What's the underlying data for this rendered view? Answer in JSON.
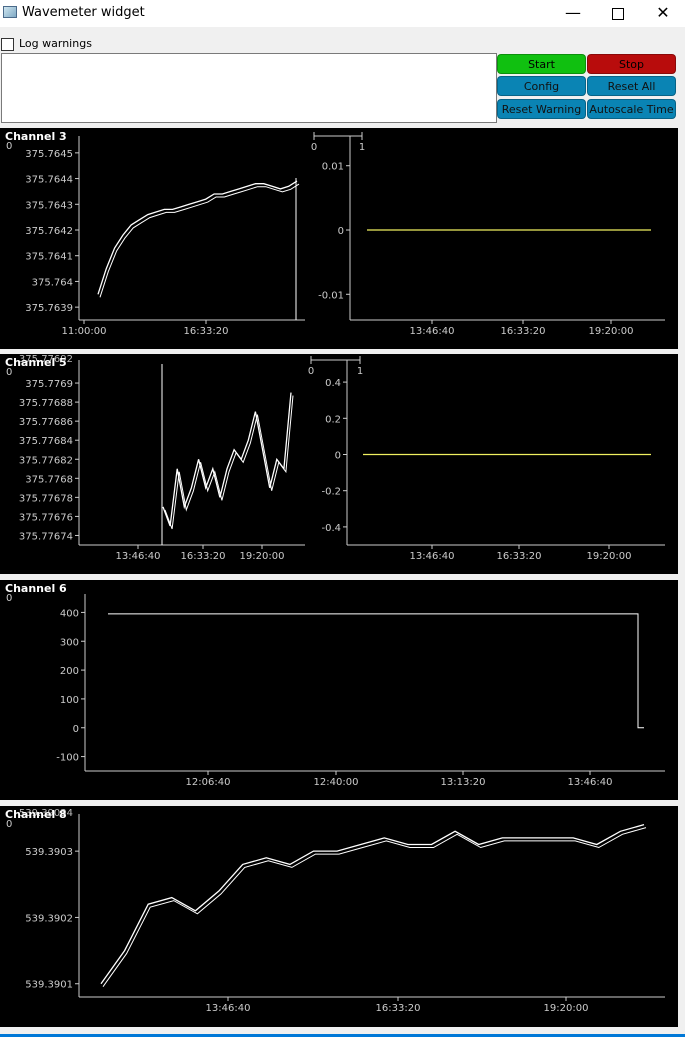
{
  "window": {
    "title": "Wavemeter widget",
    "minimize": "—",
    "close": "✕"
  },
  "log": {
    "checkbox_label": "Log warnings",
    "checked": false
  },
  "buttons": {
    "start": "Start",
    "stop": "Stop",
    "config": "Config",
    "reset_all": "Reset All",
    "reset_warning": "Reset Warning",
    "autoscale_time": "Autoscale Time"
  },
  "colors": {
    "start": "#10c010",
    "stop": "#b80c0c",
    "teal": "#0a84b4",
    "trace": "#ffffff",
    "lock": "#f0f060"
  },
  "channels": [
    {
      "label": "Channel 3"
    },
    {
      "label": "Channel 5"
    },
    {
      "label": "Channel 6"
    },
    {
      "label": "Channel 8"
    }
  ],
  "chart_data": [
    {
      "type": "line",
      "name": "channel-3-frequency",
      "x_ticks": [
        "11:00:00",
        "16:33:20"
      ],
      "y_ticks": [
        "375.7645",
        "375.7644",
        "375.7643",
        "375.7642",
        "375.7641",
        "375.764",
        "375.7639"
      ],
      "mini_axis": [
        "0",
        "1"
      ],
      "corner_label": "0",
      "y_range": [
        375.76385,
        375.76455
      ],
      "series": [
        {
          "values": [
            375.76395,
            375.76405,
            375.76413,
            375.76418,
            375.76422,
            375.76424,
            375.76426,
            375.76427,
            375.76428,
            375.76428,
            375.76429,
            375.7643,
            375.76431,
            375.76432,
            375.76434,
            375.76434,
            375.76435,
            375.76436,
            375.76437,
            375.76438,
            375.76438,
            375.76437,
            375.76436,
            375.76437,
            375.76439
          ]
        }
      ]
    },
    {
      "type": "line",
      "name": "channel-3-error",
      "x_ticks": [
        "13:46:40",
        "16:33:20",
        "19:20:00"
      ],
      "y_ticks": [
        "0.01",
        "0",
        "-0.01"
      ],
      "y_range": [
        -0.014,
        0.014
      ],
      "series": [
        {
          "values": [
            0,
            0
          ]
        }
      ]
    },
    {
      "type": "line",
      "name": "channel-5-frequency",
      "x_ticks": [
        "13:46:40",
        "16:33:20",
        "19:20:00"
      ],
      "y_ticks": [
        "375.7769",
        "375.77688",
        "375.77686",
        "375.77684",
        "375.77682",
        "375.7768",
        "375.77678",
        "375.77676",
        "375.77674"
      ],
      "mini_axis": [
        "0",
        "1"
      ],
      "corner_label": "0",
      "top_partial": "375.77692",
      "y_range": [
        375.77673,
        375.77692
      ],
      "series": [
        {
          "values": [
            375.77677,
            375.77675,
            375.77681,
            375.77677,
            375.77679,
            375.77682,
            375.77679,
            375.77681,
            375.77678,
            375.77681,
            375.77683,
            375.77682,
            375.77684,
            375.77687,
            375.77683,
            375.77679,
            375.77682,
            375.77681,
            375.77689
          ]
        }
      ]
    },
    {
      "type": "line",
      "name": "channel-5-error",
      "x_ticks": [
        "13:46:40",
        "16:33:20",
        "19:20:00"
      ],
      "y_ticks": [
        "0.4",
        "0.2",
        "0",
        "-0.2",
        "-0.4"
      ],
      "y_range": [
        -0.5,
        0.5
      ],
      "series": [
        {
          "values": [
            0,
            0
          ]
        }
      ]
    },
    {
      "type": "line",
      "name": "channel-6",
      "x_ticks": [
        "12:06:40",
        "12:40:00",
        "13:13:20",
        "13:46:40"
      ],
      "y_ticks": [
        "400",
        "300",
        "200",
        "100",
        "0",
        "-100"
      ],
      "corner_label": "0",
      "y_range": [
        -150,
        450
      ],
      "series": [
        {
          "values": [
            395,
            395,
            395,
            395,
            0
          ]
        }
      ]
    },
    {
      "type": "line",
      "name": "channel-8-frequency",
      "x_ticks": [
        "13:46:40",
        "16:33:20",
        "19:20:00"
      ],
      "y_ticks": [
        "539.3903",
        "539.3902",
        "539.3901"
      ],
      "corner_label": "0",
      "top_partial": "539.39034",
      "y_range": [
        539.39008,
        539.39035
      ],
      "series": [
        {
          "values": [
            539.3901,
            539.39015,
            539.39022,
            539.39023,
            539.39021,
            539.39024,
            539.39028,
            539.39029,
            539.39028,
            539.3903,
            539.3903,
            539.39031,
            539.39032,
            539.39031,
            539.39031,
            539.39033,
            539.39031,
            539.39032,
            539.39032,
            539.39032,
            539.39032,
            539.39031,
            539.39033,
            539.39034
          ]
        }
      ]
    }
  ]
}
